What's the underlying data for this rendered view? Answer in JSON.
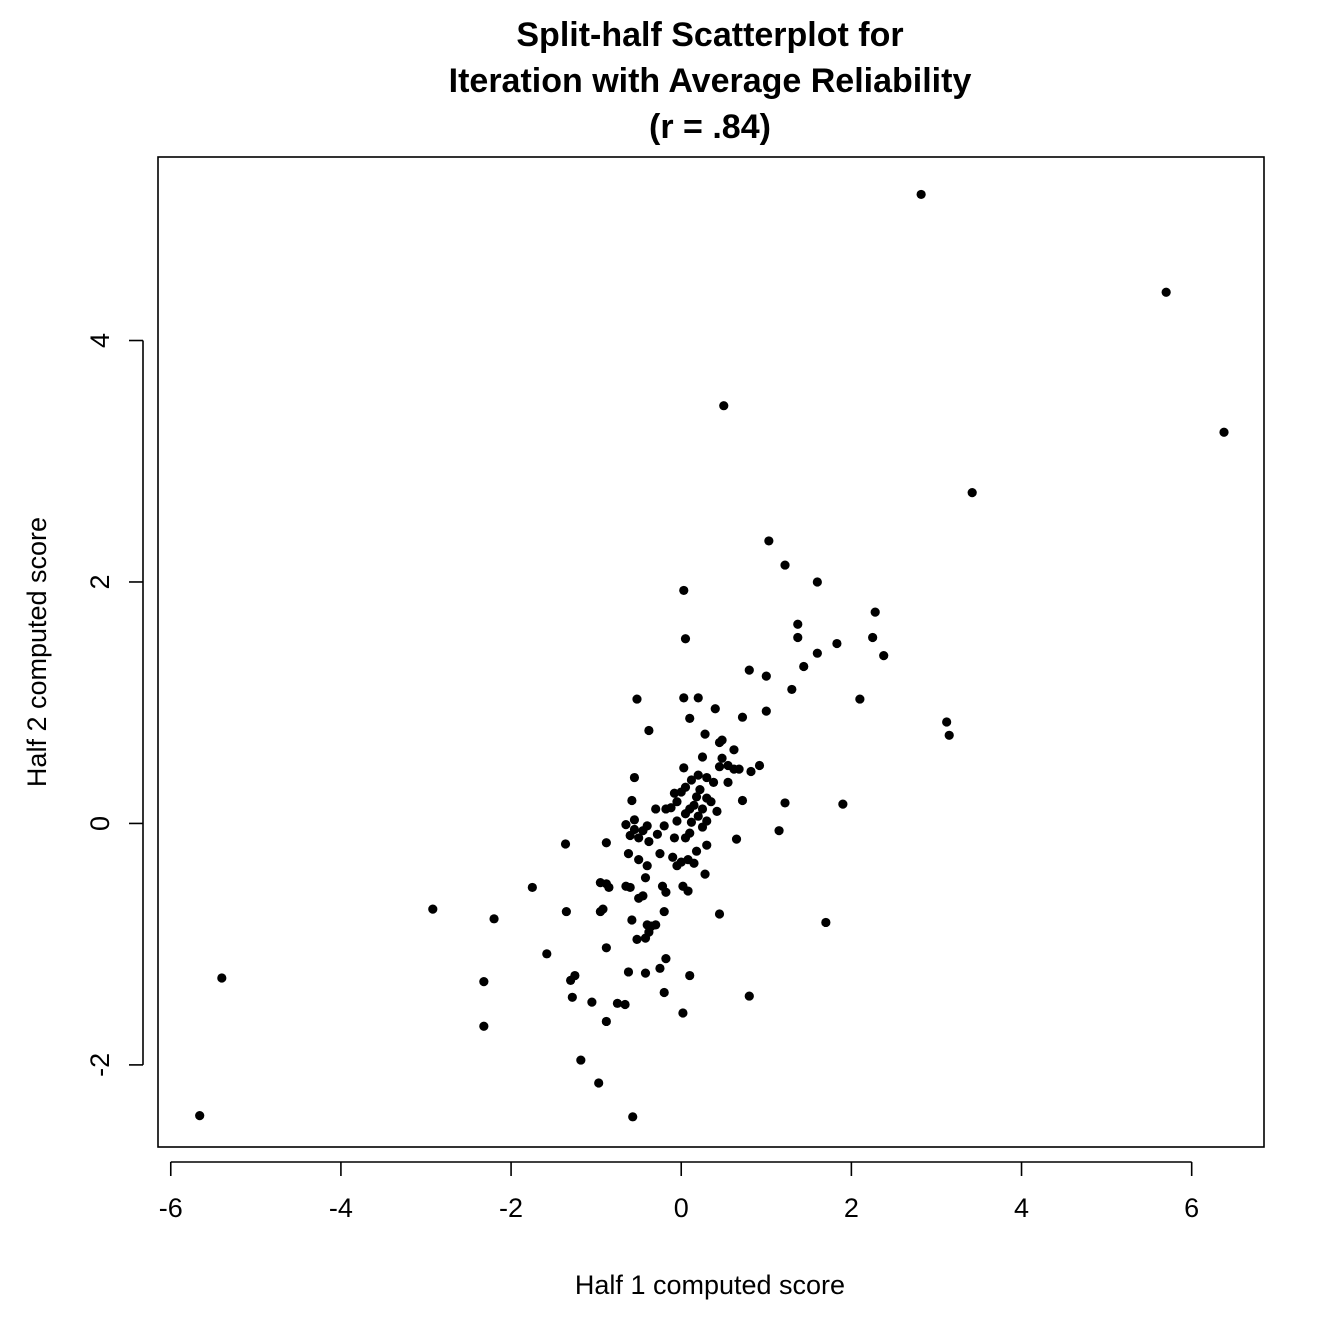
{
  "chart_data": {
    "type": "scatter",
    "title_lines": [
      "Split-half Scatterplot for",
      "Iteration with Average Reliability",
      "(r = .84)"
    ],
    "xlabel": "Half 1 computed score",
    "ylabel": "Half 2 computed score",
    "xlim": [
      -6.15,
      6.85
    ],
    "ylim": [
      -2.68,
      5.52
    ],
    "xticks": [
      -6,
      -4,
      -2,
      0,
      2,
      4,
      6
    ],
    "xtick_labels": [
      "-6",
      "-4",
      "-2",
      "0",
      "2",
      "4",
      "6"
    ],
    "yticks": [
      -2,
      0,
      2,
      4
    ],
    "ytick_labels": [
      "-2",
      "0",
      "2",
      "4"
    ],
    "grid": false,
    "legend": "none",
    "point_color": "#000000",
    "points": [
      [
        2.82,
        5.21
      ],
      [
        5.7,
        4.4
      ],
      [
        6.38,
        3.24
      ],
      [
        0.5,
        3.46
      ],
      [
        3.42,
        2.74
      ],
      [
        1.03,
        2.34
      ],
      [
        1.22,
        2.14
      ],
      [
        1.6,
        2.0
      ],
      [
        0.03,
        1.93
      ],
      [
        2.28,
        1.75
      ],
      [
        1.37,
        1.65
      ],
      [
        1.37,
        1.54
      ],
      [
        2.25,
        1.54
      ],
      [
        1.83,
        1.49
      ],
      [
        1.6,
        1.41
      ],
      [
        2.38,
        1.39
      ],
      [
        1.44,
        1.3
      ],
      [
        0.8,
        1.27
      ],
      [
        1.0,
        1.22
      ],
      [
        1.3,
        1.11
      ],
      [
        2.1,
        1.03
      ],
      [
        0.05,
        1.53
      ],
      [
        -0.52,
        1.03
      ],
      [
        0.03,
        1.04
      ],
      [
        0.2,
        1.04
      ],
      [
        0.4,
        0.95
      ],
      [
        1.0,
        0.93
      ],
      [
        0.72,
        0.88
      ],
      [
        0.1,
        0.87
      ],
      [
        3.12,
        0.84
      ],
      [
        3.15,
        0.73
      ],
      [
        -0.38,
        0.77
      ],
      [
        0.28,
        0.74
      ],
      [
        0.48,
        0.69
      ],
      [
        0.45,
        0.67
      ],
      [
        0.62,
        0.61
      ],
      [
        0.25,
        0.55
      ],
      [
        0.48,
        0.54
      ],
      [
        0.55,
        0.48
      ],
      [
        0.45,
        0.47
      ],
      [
        0.92,
        0.48
      ],
      [
        0.62,
        0.45
      ],
      [
        0.68,
        0.45
      ],
      [
        0.82,
        0.43
      ],
      [
        0.03,
        0.46
      ],
      [
        -0.55,
        0.38
      ],
      [
        0.2,
        0.4
      ],
      [
        0.3,
        0.38
      ],
      [
        0.12,
        0.36
      ],
      [
        0.38,
        0.34
      ],
      [
        0.55,
        0.34
      ],
      [
        0.05,
        0.3
      ],
      [
        0.22,
        0.28
      ],
      [
        0.0,
        0.26
      ],
      [
        -0.08,
        0.25
      ],
      [
        0.18,
        0.22
      ],
      [
        0.3,
        0.21
      ],
      [
        -0.58,
        0.19
      ],
      [
        -0.05,
        0.18
      ],
      [
        0.35,
        0.18
      ],
      [
        0.72,
        0.19
      ],
      [
        1.22,
        0.17
      ],
      [
        1.9,
        0.16
      ],
      [
        0.15,
        0.15
      ],
      [
        -0.12,
        0.13
      ],
      [
        -0.3,
        0.12
      ],
      [
        -0.18,
        0.12
      ],
      [
        0.1,
        0.12
      ],
      [
        0.25,
        0.12
      ],
      [
        0.42,
        0.1
      ],
      [
        0.05,
        0.08
      ],
      [
        0.2,
        0.06
      ],
      [
        -0.55,
        0.03
      ],
      [
        0.3,
        0.02
      ],
      [
        -0.05,
        0.02
      ],
      [
        0.12,
        0.01
      ],
      [
        -0.65,
        -0.01
      ],
      [
        -0.4,
        -0.02
      ],
      [
        -0.2,
        -0.02
      ],
      [
        0.25,
        -0.03
      ],
      [
        -0.55,
        -0.05
      ],
      [
        -0.45,
        -0.06
      ],
      [
        1.15,
        -0.06
      ],
      [
        0.1,
        -0.08
      ],
      [
        -0.28,
        -0.09
      ],
      [
        -0.6,
        -0.1
      ],
      [
        -0.5,
        -0.12
      ],
      [
        -0.08,
        -0.12
      ],
      [
        0.05,
        -0.12
      ],
      [
        0.65,
        -0.13
      ],
      [
        -0.38,
        -0.15
      ],
      [
        -0.88,
        -0.16
      ],
      [
        -1.36,
        -0.17
      ],
      [
        0.3,
        -0.18
      ],
      [
        -0.62,
        -0.25
      ],
      [
        -0.25,
        -0.25
      ],
      [
        0.18,
        -0.23
      ],
      [
        -0.1,
        -0.28
      ],
      [
        0.0,
        -0.32
      ],
      [
        -0.5,
        -0.3
      ],
      [
        0.08,
        -0.3
      ],
      [
        -0.4,
        -0.35
      ],
      [
        0.15,
        -0.33
      ],
      [
        -0.05,
        -0.35
      ],
      [
        0.28,
        -0.42
      ],
      [
        -0.42,
        -0.45
      ],
      [
        -0.95,
        -0.49
      ],
      [
        -0.88,
        -0.5
      ],
      [
        -0.65,
        -0.52
      ],
      [
        -0.22,
        -0.52
      ],
      [
        0.02,
        -0.52
      ],
      [
        -0.6,
        -0.53
      ],
      [
        -0.85,
        -0.53
      ],
      [
        -1.75,
        -0.53
      ],
      [
        -0.18,
        -0.57
      ],
      [
        0.08,
        -0.56
      ],
      [
        -0.45,
        -0.6
      ],
      [
        -0.5,
        -0.62
      ],
      [
        -0.2,
        -0.73
      ],
      [
        -0.92,
        -0.71
      ],
      [
        -0.95,
        -0.73
      ],
      [
        -1.35,
        -0.73
      ],
      [
        -2.92,
        -0.71
      ],
      [
        -0.58,
        -0.8
      ],
      [
        -2.2,
        -0.79
      ],
      [
        0.45,
        -0.75
      ],
      [
        1.7,
        -0.82
      ],
      [
        -0.4,
        -0.84
      ],
      [
        -0.35,
        -0.85
      ],
      [
        -0.3,
        -0.84
      ],
      [
        -0.38,
        -0.9
      ],
      [
        -0.42,
        -0.95
      ],
      [
        -0.52,
        -0.96
      ],
      [
        -0.88,
        -1.03
      ],
      [
        -1.58,
        -1.08
      ],
      [
        -0.18,
        -1.12
      ],
      [
        -0.25,
        -1.2
      ],
      [
        -0.62,
        -1.23
      ],
      [
        -0.42,
        -1.24
      ],
      [
        0.1,
        -1.26
      ],
      [
        -1.25,
        -1.26
      ],
      [
        -1.3,
        -1.3
      ],
      [
        -5.4,
        -1.28
      ],
      [
        -2.32,
        -1.31
      ],
      [
        -0.2,
        -1.4
      ],
      [
        0.8,
        -1.43
      ],
      [
        -1.28,
        -1.44
      ],
      [
        -1.05,
        -1.48
      ],
      [
        -0.75,
        -1.49
      ],
      [
        -0.66,
        -1.5
      ],
      [
        0.02,
        -1.57
      ],
      [
        -0.88,
        -1.64
      ],
      [
        -2.32,
        -1.68
      ],
      [
        -1.18,
        -1.96
      ],
      [
        -0.97,
        -2.15
      ],
      [
        -5.66,
        -2.42
      ],
      [
        -0.57,
        -2.43
      ]
    ]
  }
}
